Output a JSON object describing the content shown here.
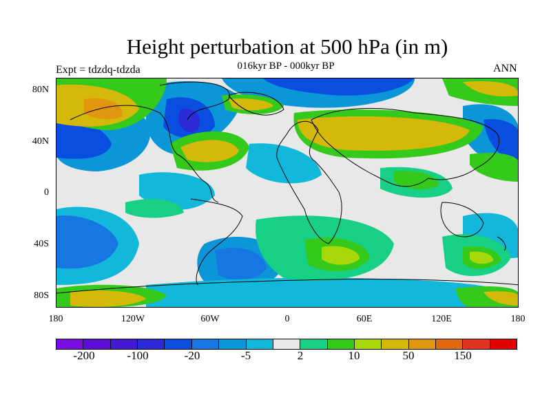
{
  "title": "Height perturbation at 500 hPa (in m)",
  "subtitle": "016kyr BP - 000kyr BP",
  "left_label": "Expt = tdzdq-tdzda",
  "right_label": "ANN",
  "lat_labels": [
    "80N",
    "40N",
    "0",
    "40S",
    "80S"
  ],
  "lon_labels": [
    "180",
    "120W",
    "60W",
    "0",
    "60E",
    "120E",
    "180"
  ],
  "colorbar": {
    "colors": [
      "#7a0de0",
      "#5b0fd6",
      "#4318d0",
      "#2a2ad6",
      "#0a4ee0",
      "#1676e2",
      "#0b96d8",
      "#11b8da",
      "#e8e8e8",
      "#17d085",
      "#35c91c",
      "#a8d80a",
      "#d4b80a",
      "#e0960e",
      "#e0680e",
      "#e0341e",
      "#e00000"
    ],
    "labels": [
      "-200",
      "-100",
      "-20",
      "-5",
      "2",
      "10",
      "50",
      "150"
    ]
  },
  "map": {
    "projection": "cylindrical equidistant",
    "lon_range": [
      -180,
      180
    ],
    "lat_range": [
      -90,
      90
    ]
  }
}
